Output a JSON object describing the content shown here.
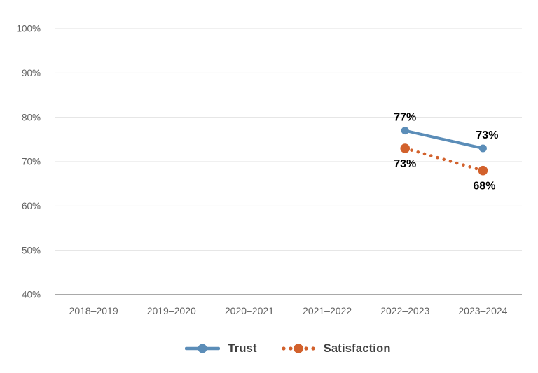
{
  "chart_data": {
    "type": "line",
    "title": "",
    "categories": [
      "2018–2019",
      "2019–2020",
      "2020–2021",
      "2021–2022",
      "2022–2023",
      "2023–2024"
    ],
    "y_axis": {
      "min": 40,
      "max": 100,
      "step": 10,
      "tick_labels_top_to_bottom": [
        "100%",
        "90%",
        "80%",
        "70%",
        "60%",
        "50%",
        "40%"
      ],
      "unit": "%"
    },
    "grid": true,
    "legend_position": "bottom",
    "series": [
      {
        "name": "Trust",
        "color": "#5B8DB8",
        "line_style": "solid",
        "points": [
          {
            "category": "2022–2023",
            "value": 77,
            "label": "77%",
            "label_placement": "above",
            "label_dx": 0
          },
          {
            "category": "2023–2024",
            "value": 73,
            "label": "73%",
            "label_placement": "above",
            "label_dx": 6
          }
        ]
      },
      {
        "name": "Satisfaction",
        "color": "#D2612C",
        "line_style": "dotted",
        "points": [
          {
            "category": "2022–2023",
            "value": 73,
            "label": "73%",
            "label_placement": "below",
            "label_dx": 0
          },
          {
            "category": "2023–2024",
            "value": 68,
            "label": "68%",
            "label_placement": "below",
            "label_dx": 2
          }
        ]
      }
    ],
    "colors": {
      "gridline": "#E2E2E2",
      "axis_line": "#A9A9A9",
      "tick_label": "#636363",
      "data_label": "#000000",
      "background": "#FFFFFF"
    }
  }
}
